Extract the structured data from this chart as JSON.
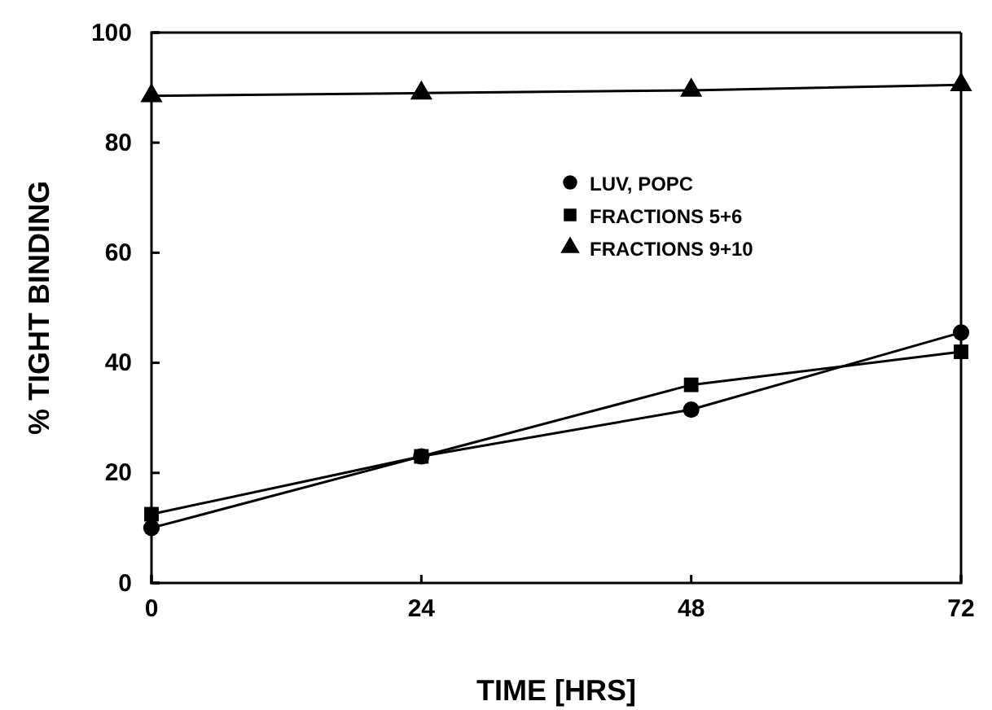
{
  "chart_data": {
    "type": "line",
    "xlabel": "TIME [HRS]",
    "ylabel": "% TIGHT BINDING",
    "x": [
      0,
      24,
      48,
      72
    ],
    "series": [
      {
        "name": "LUV, POPC",
        "color": "#000000",
        "marker": "circle",
        "values": [
          10,
          23,
          31.5,
          45.5
        ]
      },
      {
        "name": "FRACTIONS 5+6",
        "color": "#000000",
        "marker": "square",
        "values": [
          12.5,
          23,
          36,
          42
        ]
      },
      {
        "name": "FRACTIONS 9+10",
        "color": "#000000",
        "marker": "triangle",
        "values": [
          88.5,
          89,
          89.5,
          90.5
        ]
      }
    ],
    "xlim": [
      0,
      72
    ],
    "xticks": [
      0,
      24,
      48,
      72
    ],
    "ylim": [
      0,
      100
    ],
    "yticks": [
      0,
      20,
      40,
      60,
      80,
      100
    ],
    "grid": false,
    "legend": "top right",
    "line_style": "solid"
  }
}
